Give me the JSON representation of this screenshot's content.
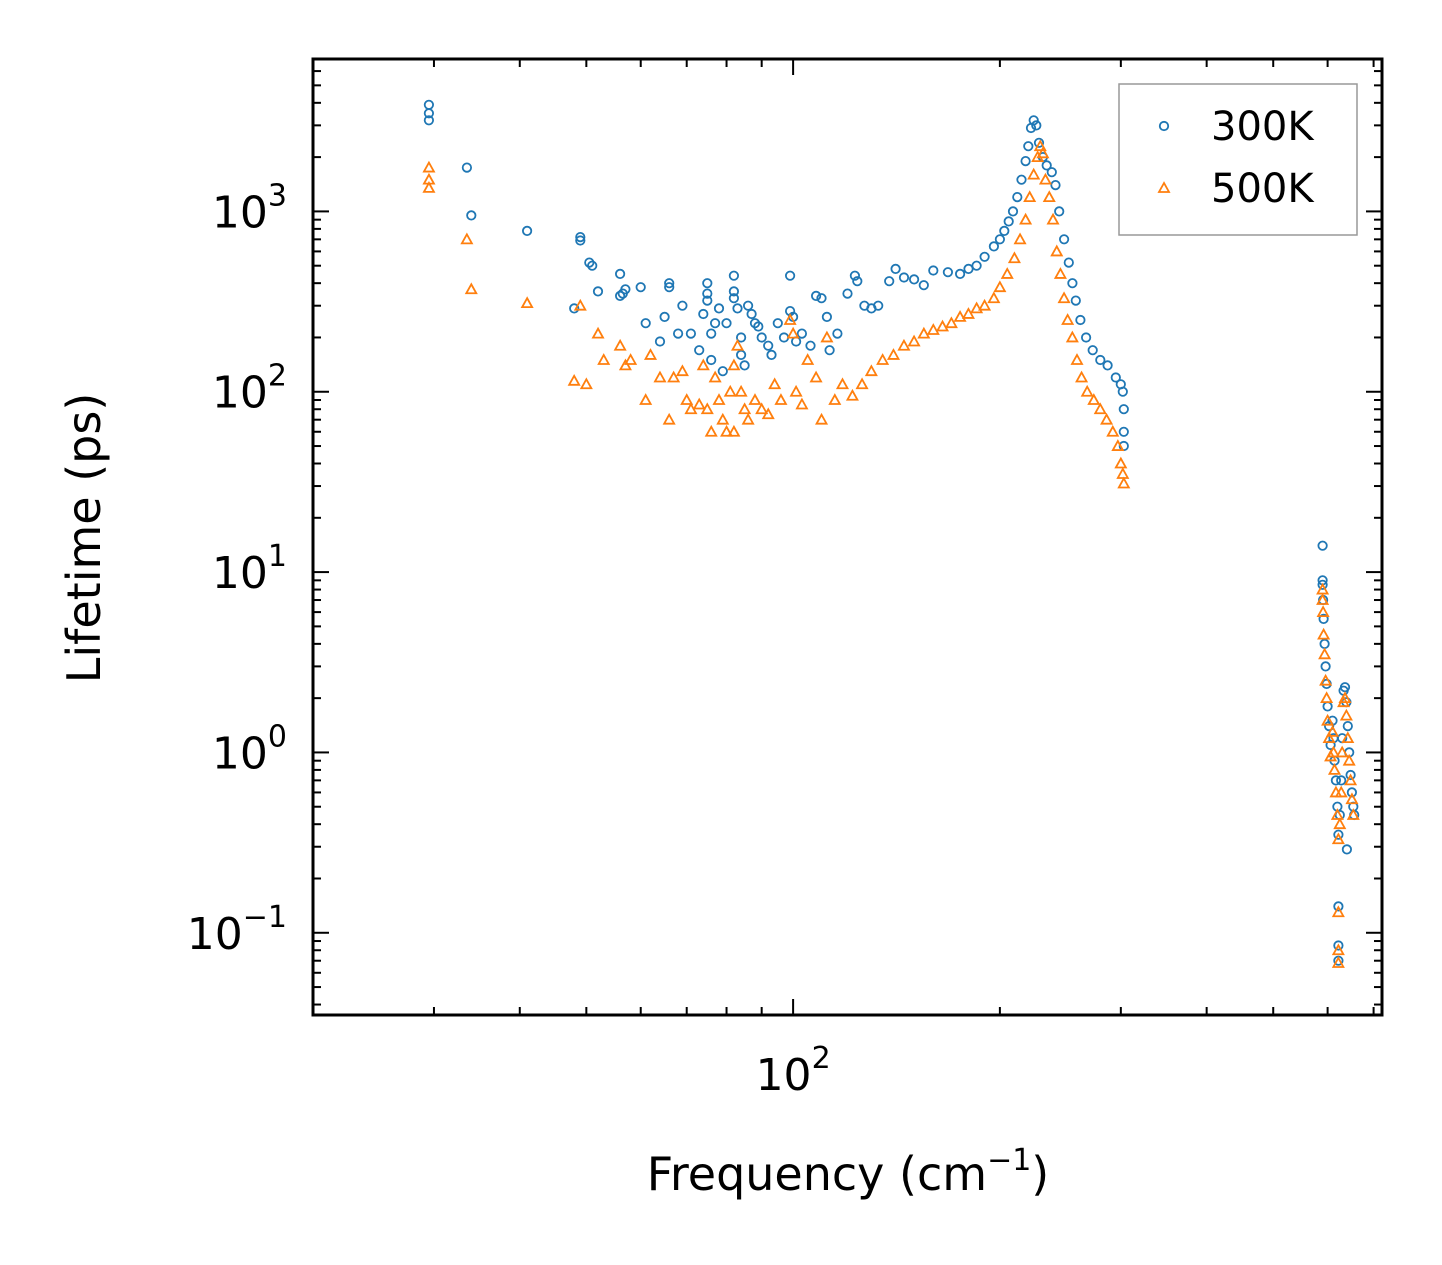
{
  "chart_data": {
    "type": "scatter",
    "xscale": "log",
    "yscale": "log",
    "xlabel": "Frequency (cm",
    "xlabel_sup": "−1",
    "xlabel_tail": ")",
    "ylabel": "Lifetime (ps)",
    "xlim": [
      20,
      720
    ],
    "ylim": [
      0.035,
      7000
    ],
    "x_ticks": [
      {
        "value": 100,
        "base": "10",
        "exp": "2"
      }
    ],
    "y_ticks": [
      {
        "value": 0.1,
        "base": "10",
        "exp": "−1"
      },
      {
        "value": 1,
        "base": "10",
        "exp": "0"
      },
      {
        "value": 10,
        "base": "10",
        "exp": "1"
      },
      {
        "value": 100,
        "base": "10",
        "exp": "2"
      },
      {
        "value": 1000,
        "base": "10",
        "exp": "3"
      }
    ],
    "legend_position": "top-right",
    "series": [
      {
        "name": "300K",
        "marker": "circle",
        "color": "#1f77b4",
        "points": [
          [
            29.5,
            3900
          ],
          [
            29.5,
            3500
          ],
          [
            29.5,
            3200
          ],
          [
            33.5,
            1750
          ],
          [
            34,
            950
          ],
          [
            41,
            780
          ],
          [
            49,
            720
          ],
          [
            49,
            690
          ],
          [
            50.5,
            520
          ],
          [
            51,
            500
          ],
          [
            48,
            290
          ],
          [
            52,
            360
          ],
          [
            56,
            450
          ],
          [
            56.5,
            350
          ],
          [
            57,
            370
          ],
          [
            56,
            340
          ],
          [
            60,
            380
          ],
          [
            61,
            240
          ],
          [
            64,
            190
          ],
          [
            65,
            260
          ],
          [
            66,
            400
          ],
          [
            66,
            380
          ],
          [
            68,
            210
          ],
          [
            69,
            300
          ],
          [
            71,
            210
          ],
          [
            73,
            170
          ],
          [
            74,
            270
          ],
          [
            75,
            400
          ],
          [
            75,
            350
          ],
          [
            75,
            320
          ],
          [
            76,
            210
          ],
          [
            76,
            150
          ],
          [
            77,
            240
          ],
          [
            78,
            290
          ],
          [
            79,
            130
          ],
          [
            80,
            240
          ],
          [
            82,
            440
          ],
          [
            82,
            360
          ],
          [
            82,
            330
          ],
          [
            83,
            290
          ],
          [
            84,
            200
          ],
          [
            84,
            160
          ],
          [
            85,
            140
          ],
          [
            86,
            300
          ],
          [
            87,
            270
          ],
          [
            88,
            240
          ],
          [
            89,
            230
          ],
          [
            90,
            200
          ],
          [
            92,
            180
          ],
          [
            93,
            160
          ],
          [
            95,
            240
          ],
          [
            97,
            200
          ],
          [
            99,
            440
          ],
          [
            99,
            280
          ],
          [
            100,
            260
          ],
          [
            101,
            190
          ],
          [
            103,
            210
          ],
          [
            106,
            180
          ],
          [
            108,
            340
          ],
          [
            110,
            330
          ],
          [
            112,
            260
          ],
          [
            113,
            170
          ],
          [
            116,
            210
          ],
          [
            120,
            350
          ],
          [
            123,
            440
          ],
          [
            124,
            410
          ],
          [
            127,
            300
          ],
          [
            130,
            290
          ],
          [
            133,
            300
          ],
          [
            138,
            410
          ],
          [
            141,
            480
          ],
          [
            145,
            430
          ],
          [
            150,
            420
          ],
          [
            155,
            390
          ],
          [
            160,
            470
          ],
          [
            168,
            460
          ],
          [
            175,
            450
          ],
          [
            180,
            480
          ],
          [
            185,
            500
          ],
          [
            190,
            560
          ],
          [
            196,
            640
          ],
          [
            200,
            700
          ],
          [
            203,
            780
          ],
          [
            206,
            880
          ],
          [
            209,
            1000
          ],
          [
            212,
            1200
          ],
          [
            215,
            1500
          ],
          [
            218,
            1900
          ],
          [
            220,
            2300
          ],
          [
            222,
            2900
          ],
          [
            224,
            3200
          ],
          [
            226,
            3000
          ],
          [
            228,
            2400
          ],
          [
            231,
            2000
          ],
          [
            234,
            1800
          ],
          [
            238,
            1650
          ],
          [
            241,
            1400
          ],
          [
            244,
            1000
          ],
          [
            248,
            700
          ],
          [
            252,
            520
          ],
          [
            255,
            400
          ],
          [
            258,
            320
          ],
          [
            262,
            250
          ],
          [
            267,
            200
          ],
          [
            273,
            170
          ],
          [
            280,
            150
          ],
          [
            287,
            140
          ],
          [
            295,
            120
          ],
          [
            300,
            110
          ],
          [
            302,
            100
          ],
          [
            303,
            80
          ],
          [
            303,
            60
          ],
          [
            303,
            50
          ],
          [
            590,
            14
          ],
          [
            590,
            9
          ],
          [
            590,
            8.5
          ],
          [
            591,
            7
          ],
          [
            592,
            5.5
          ],
          [
            594,
            4
          ],
          [
            596,
            3
          ],
          [
            598,
            2.4
          ],
          [
            600,
            1.8
          ],
          [
            603,
            1.4
          ],
          [
            606,
            1.1
          ],
          [
            610,
            1.5
          ],
          [
            612,
            1.2
          ],
          [
            614,
            0.9
          ],
          [
            617,
            0.7
          ],
          [
            620,
            0.5
          ],
          [
            622,
            0.35
          ],
          [
            622,
            0.14
          ],
          [
            622,
            0.085
          ],
          [
            622,
            0.07
          ],
          [
            625,
            0.45
          ],
          [
            628,
            0.7
          ],
          [
            630,
            1.2
          ],
          [
            633,
            2.2
          ],
          [
            636,
            2.3
          ],
          [
            639,
            1.9
          ],
          [
            642,
            1.4
          ],
          [
            645,
            1.0
          ],
          [
            648,
            0.75
          ],
          [
            651,
            0.6
          ],
          [
            654,
            0.5
          ],
          [
            640,
            0.29
          ],
          [
            656,
            0.45
          ]
        ]
      },
      {
        "name": "500K",
        "marker": "triangle",
        "color": "#ff7f0e",
        "points": [
          [
            29.5,
            1750
          ],
          [
            29.5,
            1500
          ],
          [
            29.5,
            1350
          ],
          [
            33.5,
            700
          ],
          [
            34,
            370
          ],
          [
            41,
            310
          ],
          [
            48,
            115
          ],
          [
            49,
            300
          ],
          [
            50,
            110
          ],
          [
            52,
            210
          ],
          [
            53,
            150
          ],
          [
            56,
            180
          ],
          [
            57,
            140
          ],
          [
            58,
            150
          ],
          [
            61,
            90
          ],
          [
            62,
            160
          ],
          [
            64,
            120
          ],
          [
            66,
            70
          ],
          [
            67,
            120
          ],
          [
            69,
            130
          ],
          [
            70,
            90
          ],
          [
            71,
            80
          ],
          [
            73,
            85
          ],
          [
            74,
            140
          ],
          [
            75,
            80
          ],
          [
            76,
            60
          ],
          [
            77,
            120
          ],
          [
            78,
            90
          ],
          [
            79,
            70
          ],
          [
            80,
            60
          ],
          [
            81,
            100
          ],
          [
            82,
            60
          ],
          [
            82,
            140
          ],
          [
            83,
            180
          ],
          [
            84,
            100
          ],
          [
            85,
            80
          ],
          [
            86,
            70
          ],
          [
            88,
            90
          ],
          [
            90,
            80
          ],
          [
            92,
            75
          ],
          [
            94,
            110
          ],
          [
            96,
            90
          ],
          [
            99,
            250
          ],
          [
            100,
            210
          ],
          [
            101,
            100
          ],
          [
            103,
            85
          ],
          [
            105,
            150
          ],
          [
            108,
            120
          ],
          [
            110,
            70
          ],
          [
            112,
            200
          ],
          [
            115,
            90
          ],
          [
            118,
            110
          ],
          [
            122,
            95
          ],
          [
            126,
            110
          ],
          [
            130,
            130
          ],
          [
            135,
            150
          ],
          [
            140,
            160
          ],
          [
            145,
            180
          ],
          [
            150,
            190
          ],
          [
            155,
            210
          ],
          [
            160,
            220
          ],
          [
            165,
            230
          ],
          [
            170,
            240
          ],
          [
            175,
            260
          ],
          [
            180,
            270
          ],
          [
            185,
            290
          ],
          [
            190,
            300
          ],
          [
            196,
            330
          ],
          [
            200,
            380
          ],
          [
            205,
            450
          ],
          [
            210,
            550
          ],
          [
            214,
            700
          ],
          [
            218,
            900
          ],
          [
            221,
            1200
          ],
          [
            224,
            1600
          ],
          [
            227,
            2000
          ],
          [
            229,
            2300
          ],
          [
            231,
            2100
          ],
          [
            233,
            1500
          ],
          [
            236,
            1200
          ],
          [
            239,
            900
          ],
          [
            242,
            600
          ],
          [
            245,
            450
          ],
          [
            248,
            330
          ],
          [
            251,
            250
          ],
          [
            255,
            200
          ],
          [
            259,
            150
          ],
          [
            263,
            120
          ],
          [
            268,
            100
          ],
          [
            274,
            90
          ],
          [
            280,
            80
          ],
          [
            286,
            70
          ],
          [
            292,
            60
          ],
          [
            297,
            50
          ],
          [
            300,
            40
          ],
          [
            302,
            35
          ],
          [
            303,
            31
          ],
          [
            590,
            8
          ],
          [
            590,
            7
          ],
          [
            591,
            6
          ],
          [
            592,
            4.5
          ],
          [
            594,
            3.5
          ],
          [
            596,
            2.5
          ],
          [
            598,
            2
          ],
          [
            600,
            1.5
          ],
          [
            603,
            1.2
          ],
          [
            606,
            0.95
          ],
          [
            610,
            1.3
          ],
          [
            612,
            1.0
          ],
          [
            614,
            0.8
          ],
          [
            617,
            0.6
          ],
          [
            620,
            0.45
          ],
          [
            622,
            0.33
          ],
          [
            622,
            0.13
          ],
          [
            622,
            0.08
          ],
          [
            622,
            0.068
          ],
          [
            625,
            0.4
          ],
          [
            628,
            0.6
          ],
          [
            630,
            1.0
          ],
          [
            633,
            1.9
          ],
          [
            636,
            2.0
          ],
          [
            639,
            1.6
          ],
          [
            642,
            1.2
          ],
          [
            645,
            0.9
          ],
          [
            648,
            0.7
          ],
          [
            651,
            0.55
          ],
          [
            654,
            0.45
          ]
        ]
      }
    ]
  }
}
